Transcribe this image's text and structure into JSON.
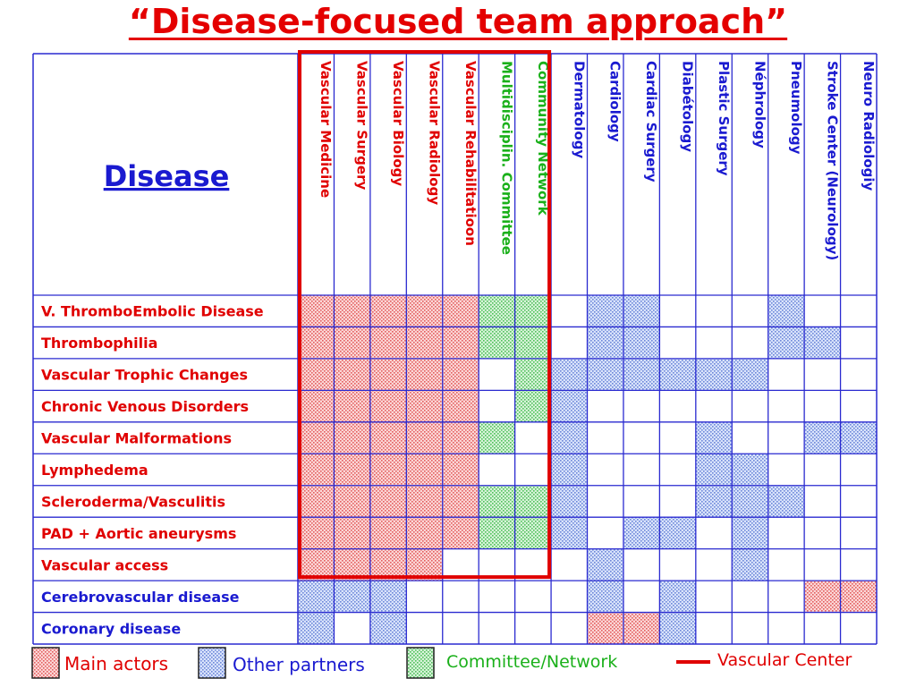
{
  "title": "“Disease-focused team approach”",
  "corner_header": "Disease",
  "colors": {
    "main": "#f09a9a",
    "other": "#9fb4ea",
    "committee": "#9fe0a4",
    "red_text": "#e00000",
    "blue_text": "#1a1ad0",
    "green_text": "#1ab01a",
    "grid": "#2a2ad0",
    "vascular_center": "#e00000"
  },
  "columns": [
    {
      "label": "Vascular Medicine",
      "group": "red"
    },
    {
      "label": "Vascular Surgery",
      "group": "red"
    },
    {
      "label": "Vascular Biology",
      "group": "red"
    },
    {
      "label": "Vascular Radiology",
      "group": "red"
    },
    {
      "label": "Vascular Rehabilitatioon",
      "group": "red"
    },
    {
      "label": "Multidisciplin. Committee",
      "group": "green"
    },
    {
      "label": "Community Network",
      "group": "green"
    },
    {
      "label": "Dermatology",
      "group": "blue"
    },
    {
      "label": "Cardiology",
      "group": "blue"
    },
    {
      "label": "Cardiac Surgery",
      "group": "blue"
    },
    {
      "label": "Diabétology",
      "group": "blue"
    },
    {
      "label": "Plastic Surgery",
      "group": "blue"
    },
    {
      "label": "Néphrology",
      "group": "blue"
    },
    {
      "label": "Pneumology",
      "group": "blue"
    },
    {
      "label": "Stroke Center (Neurology)",
      "group": "blue"
    },
    {
      "label": "Neuro Radiologiy",
      "group": "blue"
    }
  ],
  "rows": [
    {
      "label": "V. ThromboEmbolic Disease",
      "group": "red",
      "cells": "MMMMMCC.OO...O.."
    },
    {
      "label": "Thrombophilia",
      "group": "red",
      "cells": "MMMMMCC.OO...OO."
    },
    {
      "label": "Vascular Trophic Changes",
      "group": "red",
      "cells": "MMMMM.COOOOOO..."
    },
    {
      "label": "Chronic Venous Disorders",
      "group": "red",
      "cells": "MMMMM.CO........"
    },
    {
      "label": "Vascular Malformations",
      "group": "red",
      "cells": "MMMMMC.O...O..OO"
    },
    {
      "label": "Lymphedema",
      "group": "red",
      "cells": "MMMMM..O...OO..."
    },
    {
      "label": "Scleroderma/Vasculitis",
      "group": "red",
      "cells": "MMMMMCCO...OOO.."
    },
    {
      "label": "PAD + Aortic aneurysms",
      "group": "red",
      "cells": "MMMMMCCO.OO.O..."
    },
    {
      "label": "Vascular access",
      "group": "red",
      "cells": "MMMM....O...O..."
    },
    {
      "label": "Cerebrovascular disease",
      "group": "blue",
      "cells": "OOO.....O.O...MM"
    },
    {
      "label": "Coronary disease",
      "group": "blue",
      "cells": "O.O.....MMO....."
    }
  ],
  "legend": {
    "main_label": "Main actors",
    "other_label": "Other partners",
    "committee_label": "Committee/Network",
    "vascular_center_label": "Vascular Center"
  }
}
